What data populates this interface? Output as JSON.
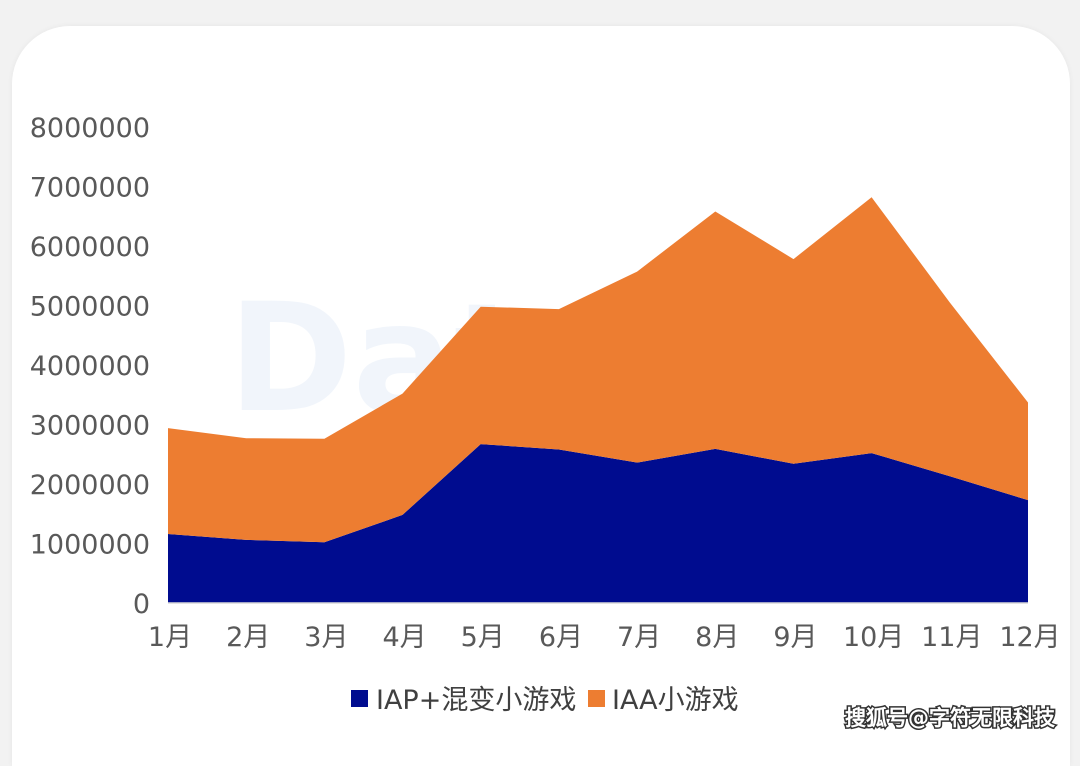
{
  "chart_data": {
    "type": "area",
    "stacked": true,
    "categories": [
      "1月",
      "2月",
      "3月",
      "4月",
      "5月",
      "6月",
      "7月",
      "8月",
      "9月",
      "10月",
      "11月",
      "12月"
    ],
    "series": [
      {
        "name": "IAP+混变小游戏",
        "color": "#000c8f",
        "values": [
          1160000,
          1060000,
          1020000,
          1480000,
          2670000,
          2580000,
          2360000,
          2590000,
          2340000,
          2520000,
          2130000,
          1730000
        ]
      },
      {
        "name": "IAA小游戏",
        "color": "#ed7d31",
        "values": [
          1780000,
          1710000,
          1740000,
          2040000,
          2310000,
          2360000,
          3210000,
          3990000,
          3440000,
          4300000,
          2920000,
          1640000
        ]
      }
    ],
    "ylim": [
      0,
      8000000
    ],
    "yticks": [
      "0",
      "1000000",
      "2000000",
      "3000000",
      "4000000",
      "5000000",
      "6000000",
      "7000000",
      "8000000"
    ],
    "ytick_values": [
      0,
      1000000,
      2000000,
      3000000,
      4000000,
      5000000,
      6000000,
      7000000,
      8000000
    ],
    "grid": false,
    "legend": "bottom"
  },
  "watermark": {
    "text": "搜狐号@字符无限科技"
  }
}
